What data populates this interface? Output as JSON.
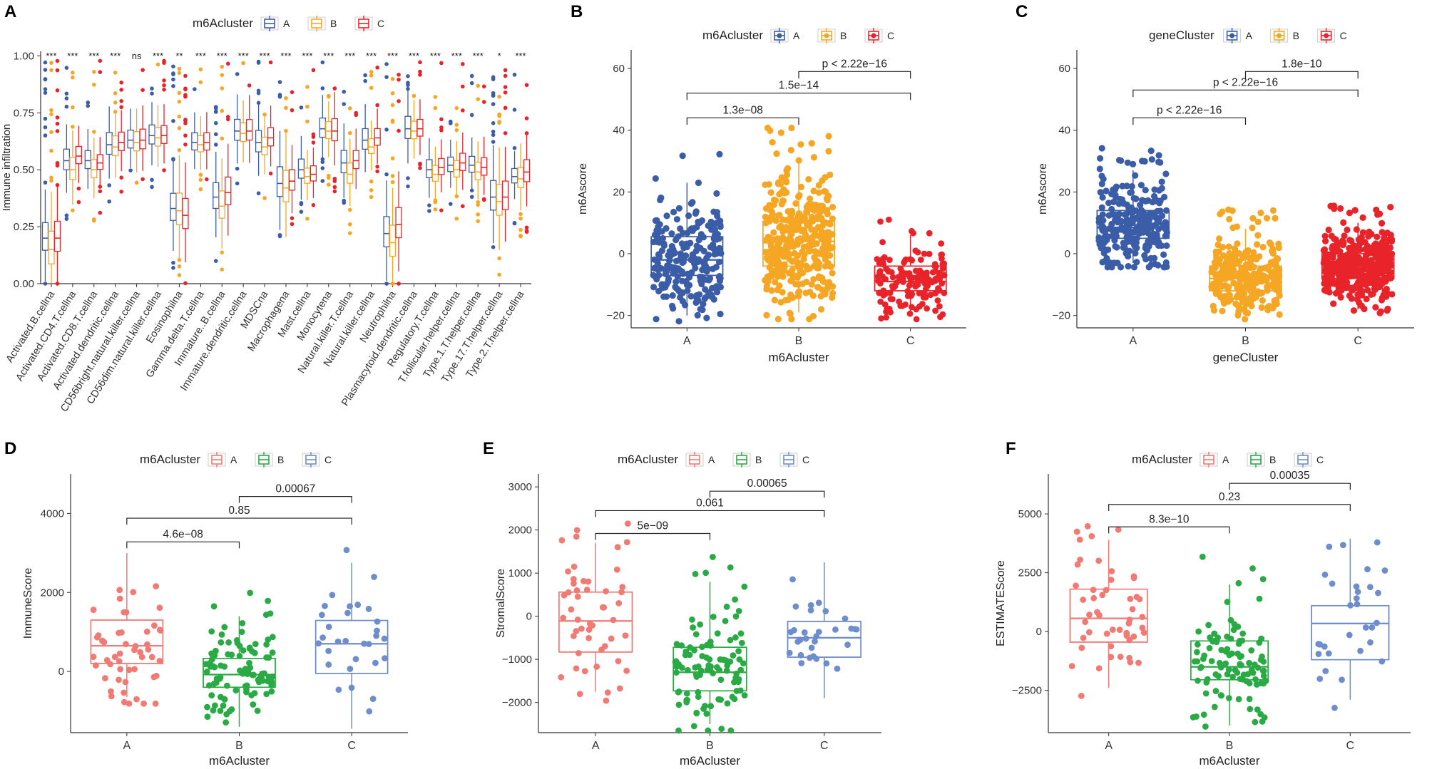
{
  "colors": {
    "set1": [
      "#3B5DA8",
      "#F5A623",
      "#E8232A"
    ],
    "set2": [
      "#F07A74",
      "#2AAA45",
      "#6E8DCC"
    ]
  },
  "chart_data": [
    {
      "id": "A",
      "type": "box",
      "panel_label": "A",
      "ylabel": "Immune infiltration",
      "legend_title": "m6Acluster",
      "legend": [
        "A",
        "B",
        "C"
      ],
      "palette": "set1",
      "ylim": [
        0,
        1.02
      ],
      "yticks": [
        "0.00",
        "0.25",
        "0.50",
        "0.75",
        "1.00"
      ],
      "ytick_values": [
        0,
        0.25,
        0.5,
        0.75,
        1.0
      ],
      "categories": [
        "Activated.B.cellna",
        "Activated.CD4.T.cellna",
        "Activated.CD8.T.cellna",
        "Activated.dendritic.cellna",
        "CD56bright.natural.killer.cellna",
        "CD56dim.natural.killer.cellna",
        "Eosinophilna",
        "Gamma.delta.T.cellna",
        "Immature..B.cellna",
        "Immature.dendritic.cellna",
        "MDSCna",
        "Macrophagena",
        "Mast.cellna",
        "Monocytena",
        "Natural.killer.T.cellna",
        "Natural.killer.cellna",
        "Neutrophilna",
        "Plasmacytoid.dendritic.cellna",
        "Regulatory.T.cellna",
        "T.follicular.helper.cellna",
        "Type.1.T.helper.cellna",
        "Type.17.T.helper.cellna",
        "Type.2.T.helper.cellna"
      ],
      "significance": [
        "***",
        "***",
        "***",
        "***",
        "ns",
        "***",
        "**",
        "***",
        "***",
        "***",
        "***",
        "***",
        "***",
        "***",
        "***",
        "***",
        "***",
        "***",
        "***",
        "***",
        "***",
        "*",
        "***"
      ],
      "medians": [
        [
          0.2,
          0.15,
          0.2
        ],
        [
          0.54,
          0.5,
          0.56
        ],
        [
          0.54,
          0.5,
          0.53
        ],
        [
          0.61,
          0.6,
          0.62
        ],
        [
          0.63,
          0.62,
          0.63
        ],
        [
          0.65,
          0.64,
          0.65
        ],
        [
          0.33,
          0.32,
          0.3
        ],
        [
          0.62,
          0.61,
          0.62
        ],
        [
          0.38,
          0.34,
          0.4
        ],
        [
          0.67,
          0.66,
          0.67
        ],
        [
          0.62,
          0.6,
          0.64
        ],
        [
          0.44,
          0.42,
          0.45
        ],
        [
          0.5,
          0.47,
          0.48
        ],
        [
          0.68,
          0.67,
          0.67
        ],
        [
          0.53,
          0.48,
          0.54
        ],
        [
          0.63,
          0.6,
          0.64
        ],
        [
          0.22,
          0.18,
          0.26
        ],
        [
          0.68,
          0.67,
          0.68
        ],
        [
          0.5,
          0.48,
          0.51
        ],
        [
          0.52,
          0.5,
          0.53
        ],
        [
          0.52,
          0.49,
          0.51
        ],
        [
          0.38,
          0.36,
          0.38
        ],
        [
          0.47,
          0.46,
          0.49
        ]
      ]
    },
    {
      "id": "B",
      "type": "box+jitter",
      "panel_label": "B",
      "xlabel": "m6Acluster",
      "ylabel": "m6Ascore",
      "legend_title": "m6Acluster",
      "legend": [
        "A",
        "B",
        "C"
      ],
      "palette": "set1",
      "categories": [
        "A",
        "B",
        "C"
      ],
      "ylim": [
        -24,
        66
      ],
      "yticks": [
        "−20",
        "0",
        "20",
        "40",
        "60"
      ],
      "ytick_values": [
        -20,
        0,
        20,
        40,
        60
      ],
      "boxes": [
        {
          "q1": -7,
          "median": -2,
          "q3": 5.5,
          "lo": -20,
          "hi": 23
        },
        {
          "q1": -4,
          "median": 4,
          "q3": 10.5,
          "lo": -19,
          "hi": 30
        },
        {
          "q1": -12,
          "median": -9,
          "q3": -4,
          "lo": -20,
          "hi": 6
        }
      ],
      "n_points": [
        230,
        380,
        150
      ],
      "comparisons": [
        {
          "from": 0,
          "to": 1,
          "label": "1.3e−08",
          "y": 44
        },
        {
          "from": 0,
          "to": 2,
          "label": "1.5e−14",
          "y": 52
        },
        {
          "from": 1,
          "to": 2,
          "label": "p < 2.22e−16",
          "y": 59
        }
      ]
    },
    {
      "id": "C",
      "type": "box+jitter",
      "panel_label": "C",
      "xlabel": "geneCluster",
      "ylabel": "m6Ascore",
      "legend_title": "geneCluster",
      "legend": [
        "A",
        "B",
        "C"
      ],
      "palette": "set1",
      "categories": [
        "A",
        "B",
        "C"
      ],
      "ylim": [
        -24,
        66
      ],
      "yticks": [
        "−20",
        "0",
        "20",
        "40",
        "60"
      ],
      "ytick_values": [
        -20,
        0,
        20,
        40,
        60
      ],
      "boxes": [
        {
          "q1": 5,
          "median": 8.5,
          "q3": 14,
          "lo": -3,
          "hi": 27
        },
        {
          "q1": -12,
          "median": -8,
          "q3": -4,
          "lo": -20,
          "hi": 8
        },
        {
          "q1": -8,
          "median": -4.5,
          "q3": 0,
          "lo": -18,
          "hi": 10
        }
      ],
      "n_points": [
        260,
        280,
        400
      ],
      "comparisons": [
        {
          "from": 0,
          "to": 1,
          "label": "p < 2.22e−16",
          "y": 44
        },
        {
          "from": 0,
          "to": 2,
          "label": "p < 2.22e−16",
          "y": 53
        },
        {
          "from": 1,
          "to": 2,
          "label": "1.8e−10",
          "y": 59
        }
      ]
    },
    {
      "id": "D",
      "type": "box+jitter",
      "panel_label": "D",
      "xlabel": "m6Acluster",
      "ylabel": "ImmuneScore",
      "legend_title": "m6Acluster",
      "legend": [
        "A",
        "B",
        "C"
      ],
      "palette": "set2",
      "categories": [
        "A",
        "B",
        "C"
      ],
      "ylim": [
        -1550,
        5000
      ],
      "yticks": [
        "0",
        "2000",
        "4000"
      ],
      "ytick_values": [
        0,
        2000,
        4000
      ],
      "boxes": [
        {
          "q1": 200,
          "median": 650,
          "q3": 1300,
          "lo": -650,
          "hi": 3000
        },
        {
          "q1": -400,
          "median": -80,
          "q3": 330,
          "lo": -1400,
          "hi": 1400
        },
        {
          "q1": -50,
          "median": 700,
          "q3": 1290,
          "lo": -1450,
          "hi": 2750
        }
      ],
      "n_points": [
        50,
        100,
        30
      ],
      "comparisons": [
        {
          "from": 0,
          "to": 1,
          "label": "4.6e−08",
          "y": 3280
        },
        {
          "from": 0,
          "to": 2,
          "label": "0.85",
          "y": 3880
        },
        {
          "from": 1,
          "to": 2,
          "label": "0.00067",
          "y": 4430
        }
      ]
    },
    {
      "id": "E",
      "type": "box+jitter",
      "panel_label": "E",
      "xlabel": "m6Acluster",
      "ylabel": "StromalScore",
      "legend_title": "m6Acluster",
      "legend": [
        "A",
        "B",
        "C"
      ],
      "palette": "set2",
      "categories": [
        "A",
        "B",
        "C"
      ],
      "ylim": [
        -2700,
        3300
      ],
      "yticks": [
        "−2000",
        "−1000",
        "0",
        "1000",
        "2000",
        "3000"
      ],
      "ytick_values": [
        -2000,
        -1000,
        0,
        1000,
        2000,
        3000
      ],
      "boxes": [
        {
          "q1": -830,
          "median": -110,
          "q3": 560,
          "lo": -1750,
          "hi": 1700
        },
        {
          "q1": -1730,
          "median": -1300,
          "q3": -720,
          "lo": -2500,
          "hi": 800
        },
        {
          "q1": -950,
          "median": -500,
          "q3": -120,
          "lo": -1900,
          "hi": 1250
        }
      ],
      "n_points": [
        50,
        100,
        30
      ],
      "comparisons": [
        {
          "from": 0,
          "to": 1,
          "label": "5e−09",
          "y": 1920
        },
        {
          "from": 0,
          "to": 2,
          "label": "0.061",
          "y": 2450
        },
        {
          "from": 1,
          "to": 2,
          "label": "0.00065",
          "y": 2900
        }
      ]
    },
    {
      "id": "F",
      "type": "box+jitter",
      "panel_label": "F",
      "xlabel": "m6Acluster",
      "ylabel": "ESTIMATEScore",
      "legend_title": "m6Acluster",
      "legend": [
        "A",
        "B",
        "C"
      ],
      "palette": "set2",
      "categories": [
        "A",
        "B",
        "C"
      ],
      "ylim": [
        -4300,
        6700
      ],
      "yticks": [
        "−2500",
        "0",
        "2500",
        "5000"
      ],
      "ytick_values": [
        -2500,
        0,
        2500,
        5000
      ],
      "boxes": [
        {
          "q1": -450,
          "median": 560,
          "q3": 1800,
          "lo": -2400,
          "hi": 3900
        },
        {
          "q1": -2050,
          "median": -1500,
          "q3": -400,
          "lo": -4000,
          "hi": 2000
        },
        {
          "q1": -1200,
          "median": 340,
          "q3": 1100,
          "lo": -2900,
          "hi": 3950
        }
      ],
      "n_points": [
        50,
        100,
        30
      ],
      "comparisons": [
        {
          "from": 0,
          "to": 1,
          "label": "8.3e−10",
          "y": 4450
        },
        {
          "from": 0,
          "to": 2,
          "label": "0.23",
          "y": 5400
        },
        {
          "from": 1,
          "to": 2,
          "label": "0.00035",
          "y": 6300
        }
      ]
    }
  ]
}
